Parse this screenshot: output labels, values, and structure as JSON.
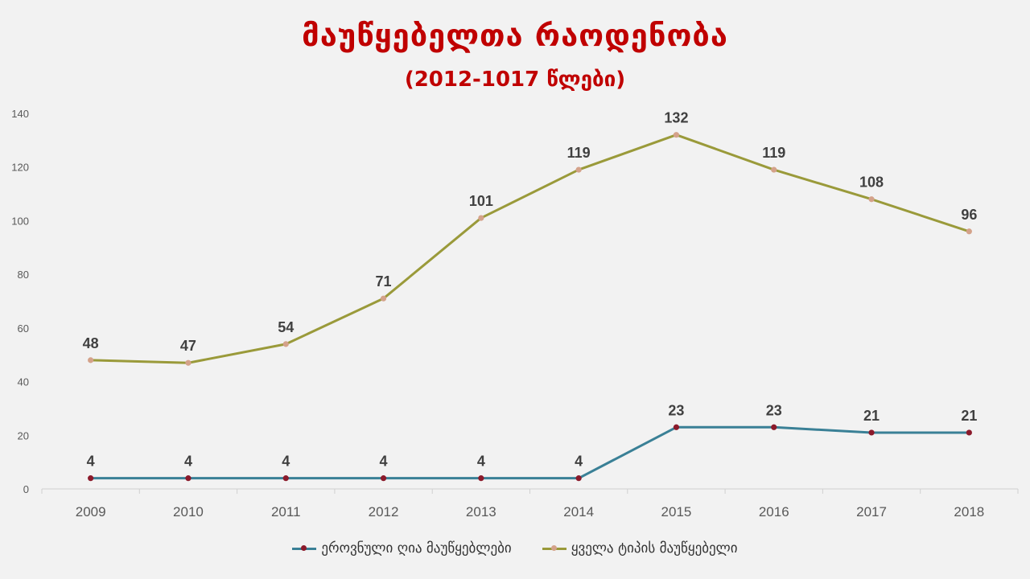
{
  "chart_data": {
    "type": "line",
    "title": "მაუწყებელთა რაოდენობა",
    "subtitle": "(2012-1017 წლები)",
    "categories": [
      "2009",
      "2010",
      "2011",
      "2012",
      "2013",
      "2014",
      "2015",
      "2016",
      "2017",
      "2018"
    ],
    "ylim": [
      0,
      140
    ],
    "yticks": [
      0,
      20,
      40,
      60,
      80,
      100,
      120,
      140
    ],
    "grid": false,
    "legend_position": "bottom",
    "series": [
      {
        "name": "ეროვნული ღია მაუწყებლები",
        "values": [
          4,
          4,
          4,
          4,
          4,
          4,
          23,
          23,
          21,
          21
        ],
        "line_color": "#3a8096",
        "marker_color": "#8b1a2b"
      },
      {
        "name": "ყველა ტიპის მაუწყებელი",
        "values": [
          48,
          47,
          54,
          71,
          101,
          119,
          132,
          119,
          108,
          96
        ],
        "line_color": "#9a9a3a",
        "marker_color": "#d4a28a"
      }
    ]
  }
}
